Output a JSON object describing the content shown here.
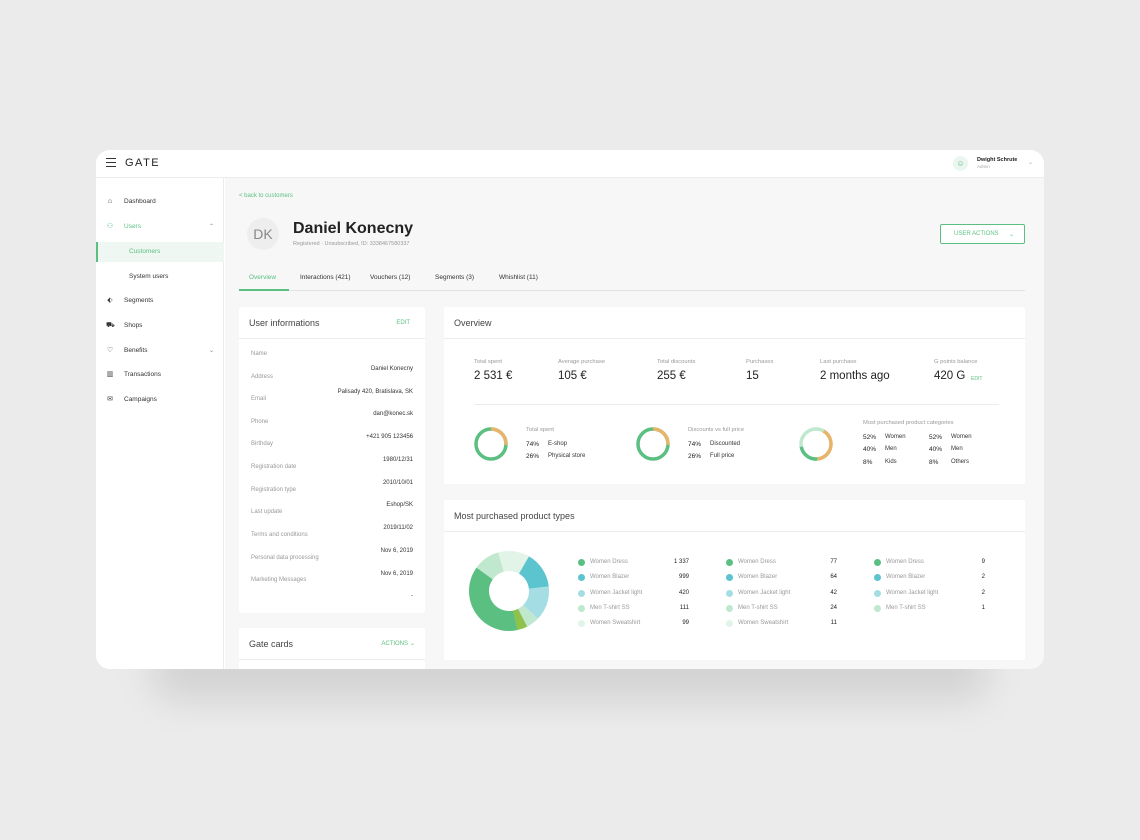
{
  "app": {
    "logo": "GATE",
    "user": {
      "initials": "☺",
      "name": "Dwight Schrute",
      "role": "Admin"
    }
  },
  "sidebar": {
    "items": [
      {
        "label": "Dashboard",
        "icon": "home-icon",
        "glyph": "⌂"
      },
      {
        "label": "Users",
        "icon": "users-icon",
        "glyph": "⚇"
      },
      {
        "label": "Segments",
        "icon": "tag-icon",
        "glyph": "⬖"
      },
      {
        "label": "Shops",
        "icon": "cart-icon",
        "glyph": "⛟"
      },
      {
        "label": "Benefits",
        "icon": "heart-icon",
        "glyph": "♡"
      },
      {
        "label": "Transactions",
        "icon": "chart-icon",
        "glyph": "▥"
      },
      {
        "label": "Campaigns",
        "icon": "mail-icon",
        "glyph": "✉"
      }
    ],
    "sub_items": [
      "Customers",
      "System users"
    ]
  },
  "header": {
    "back": "< back to customers",
    "initials": "DK",
    "name": "Daniel Konecny",
    "subtitle": "Registered · Unsubscribed, ID: 3338467580337",
    "actions_label": "USER ACTIONS"
  },
  "tabs": [
    "Overview",
    "Interactions (421)",
    "Vouchers (12)",
    "Segments (3)",
    "Whishlist (11)"
  ],
  "user_info": {
    "title": "User informations",
    "edit": "EDIT",
    "fields": [
      {
        "label": "Name",
        "value": "Daniel Konecny"
      },
      {
        "label": "Address",
        "value": "Palisady 420, Bratislava, SK"
      },
      {
        "label": "Email",
        "value": "dan@konec.sk"
      },
      {
        "label": "Phone",
        "value": "+421 905 123456"
      },
      {
        "label": "Birthday",
        "value": "1980/12/31"
      },
      {
        "label": "Registration date",
        "value": "2010/10/01"
      },
      {
        "label": "Registration type",
        "value": "Eshop/SK"
      },
      {
        "label": "Last update",
        "value": "2019/11/02"
      },
      {
        "label": "Terms and conditions",
        "value": "Nov 6, 2019"
      },
      {
        "label": "Personal data processing",
        "value": "Nov 6, 2019"
      },
      {
        "label": "Marketing Messages",
        "value": "-"
      }
    ]
  },
  "gate_cards": {
    "title": "Gate cards",
    "actions": "ACTIONS"
  },
  "overview": {
    "title": "Overview",
    "stats": [
      {
        "label": "Total spent",
        "value": "2 531 €"
      },
      {
        "label": "Average purchase",
        "value": "105 €"
      },
      {
        "label": "Total discounts",
        "value": "255 €"
      },
      {
        "label": "Purchases",
        "value": "15"
      },
      {
        "label": "Last purchase",
        "value": "2 months ago"
      },
      {
        "label": "G points balance",
        "value": "420 G",
        "edit": "EDIT"
      }
    ],
    "donuts": [
      {
        "title": "Total spent",
        "rows": [
          {
            "pct": "74%",
            "label": "E-shop"
          },
          {
            "pct": "26%",
            "label": "Physical store"
          }
        ]
      },
      {
        "title": "Discounts vs full price",
        "rows": [
          {
            "pct": "74%",
            "label": "Discounted"
          },
          {
            "pct": "26%",
            "label": "Full price"
          }
        ]
      },
      {
        "title": "Most purchased product categories",
        "rows": [
          {
            "pct": "52%",
            "label": "Women"
          },
          {
            "pct": "52%",
            "label": "Women"
          },
          {
            "pct": "40%",
            "label": "Men"
          },
          {
            "pct": "40%",
            "label": "Men"
          },
          {
            "pct": "8%",
            "label": "Kids"
          },
          {
            "pct": "8%",
            "label": "Others"
          }
        ]
      }
    ]
  },
  "product_types": {
    "title": "Most purchased product types",
    "columns": [
      [
        {
          "label": "Women Dress",
          "value": "1 337"
        },
        {
          "label": "Women Blazer",
          "value": "999"
        },
        {
          "label": "Women Jacket light",
          "value": "420"
        },
        {
          "label": "Men T-shirt SS",
          "value": "111"
        },
        {
          "label": "Women Sweatshirt",
          "value": "99"
        }
      ],
      [
        {
          "label": "Women Dress",
          "value": "77"
        },
        {
          "label": "Women Blazer",
          "value": "64"
        },
        {
          "label": "Women Jacket light",
          "value": "42"
        },
        {
          "label": "Men T-shirt SS",
          "value": "24"
        },
        {
          "label": "Women Sweatshirt",
          "value": "11"
        }
      ],
      [
        {
          "label": "Women Dress",
          "value": "9"
        },
        {
          "label": "Women Blazer",
          "value": "2"
        },
        {
          "label": "Women Jacket light",
          "value": "2"
        },
        {
          "label": "Men T-shirt SS",
          "value": "1"
        }
      ]
    ]
  },
  "colors": {
    "accent": "#5cbf82",
    "orange": "#e8b46a",
    "teal": "#5bc4cf",
    "light_teal": "#a5dde4",
    "light_green": "#bfe8cf",
    "pale_green": "#e2f4e8",
    "lime": "#8fc24a"
  }
}
